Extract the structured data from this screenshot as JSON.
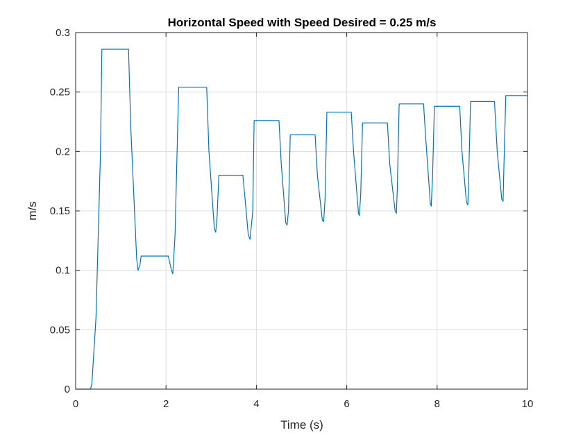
{
  "chart_data": {
    "type": "line",
    "title": "Horizontal Speed with Speed Desired = 0.25 m/s",
    "xlabel": "Time (s)",
    "ylabel": "m/s",
    "xlim": [
      0,
      10
    ],
    "ylim": [
      0,
      0.3
    ],
    "x_ticks": [
      0,
      2,
      4,
      6,
      8,
      10
    ],
    "x_tick_labels": [
      "0",
      "2",
      "4",
      "6",
      "8",
      "10"
    ],
    "y_ticks": [
      0,
      0.05,
      0.1,
      0.15,
      0.2,
      0.25,
      0.3
    ],
    "y_tick_labels": [
      "0",
      "0.05",
      "0.1",
      "0.15",
      "0.2",
      "0.25",
      "0.3"
    ],
    "grid": true,
    "series": [
      {
        "color": "#0072bd",
        "x": [
          0,
          0.33,
          0.36,
          0.45,
          0.55,
          0.58,
          1.17,
          1.22,
          1.35,
          1.38,
          1.42,
          1.45,
          2.05,
          2.12,
          2.15,
          2.2,
          2.28,
          2.9,
          2.95,
          3.07,
          3.1,
          3.13,
          3.17,
          3.7,
          3.75,
          3.82,
          3.86,
          3.92,
          3.95,
          4.5,
          4.55,
          4.65,
          4.68,
          4.71,
          4.75,
          5.3,
          5.35,
          5.46,
          5.49,
          5.52,
          5.56,
          6.1,
          6.15,
          6.26,
          6.28,
          6.31,
          6.35,
          6.9,
          6.95,
          7.07,
          7.1,
          7.12,
          7.16,
          7.7,
          7.75,
          7.85,
          7.87,
          7.9,
          7.94,
          8.5,
          8.55,
          8.65,
          8.68,
          8.7,
          8.74,
          9.27,
          9.33,
          9.43,
          9.46,
          9.48,
          9.52,
          10.0
        ],
        "y": [
          0,
          0,
          0.005,
          0.06,
          0.2,
          0.286,
          0.286,
          0.22,
          0.11,
          0.1,
          0.104,
          0.112,
          0.112,
          0.1,
          0.097,
          0.13,
          0.254,
          0.254,
          0.2,
          0.135,
          0.132,
          0.145,
          0.18,
          0.18,
          0.16,
          0.13,
          0.126,
          0.15,
          0.226,
          0.226,
          0.19,
          0.14,
          0.138,
          0.15,
          0.214,
          0.214,
          0.18,
          0.142,
          0.141,
          0.16,
          0.233,
          0.233,
          0.2,
          0.148,
          0.146,
          0.165,
          0.224,
          0.224,
          0.19,
          0.15,
          0.148,
          0.17,
          0.24,
          0.24,
          0.21,
          0.156,
          0.154,
          0.18,
          0.238,
          0.238,
          0.2,
          0.157,
          0.155,
          0.18,
          0.242,
          0.242,
          0.2,
          0.16,
          0.158,
          0.19,
          0.247,
          0.247
        ]
      }
    ]
  }
}
